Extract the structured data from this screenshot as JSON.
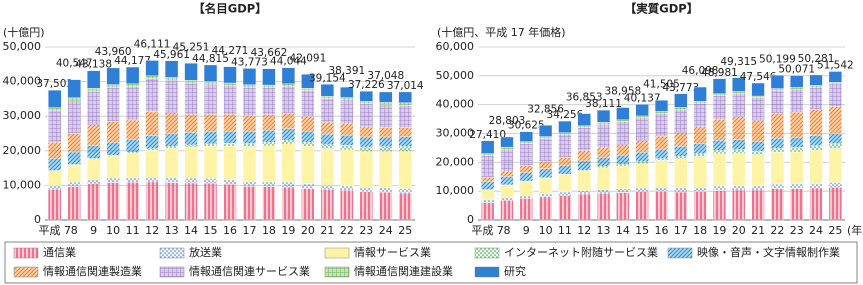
{
  "chart_data": [
    {
      "type": "bar",
      "stacked": true,
      "title": "【名目GDP】",
      "y_label": "(十億円)",
      "categories": [
        "平成 7",
        "8",
        "9",
        "10",
        "11",
        "12",
        "13",
        "14",
        "15",
        "16",
        "17",
        "18",
        "19",
        "20",
        "21",
        "22",
        "23",
        "24",
        "25"
      ],
      "ylim": [
        0,
        50000
      ],
      "yticks": [
        0,
        {
          "value": 10000,
          "label": "10,000"
        },
        {
          "value": 20000,
          "label": "20,000"
        },
        {
          "value": 30000,
          "label": "30,000"
        },
        {
          "value": 40000,
          "label": "40,000"
        },
        {
          "value": 50000,
          "label": "50,000"
        }
      ],
      "grid": true,
      "series": [
        {
          "name": "通信業",
          "color": "#e8607e",
          "pattern": "vlines",
          "values": [
            8800,
            9600,
            10500,
            10800,
            10900,
            11000,
            10800,
            10700,
            10600,
            10300,
            9700,
            9600,
            9500,
            9100,
            8800,
            8600,
            8200,
            8000,
            7800
          ]
        },
        {
          "name": "放送業",
          "color": "#3f7fd0",
          "pattern": "dots",
          "values": [
            1200,
            1300,
            1300,
            1300,
            1400,
            1400,
            1400,
            1400,
            1400,
            1400,
            1500,
            1500,
            1500,
            1400,
            1300,
            1300,
            1300,
            1300,
            1300
          ]
        },
        {
          "name": "情報サービス業",
          "color": "#fff3a6",
          "pattern": "none",
          "values": [
            4200,
            5000,
            5800,
            6400,
            7000,
            7800,
            8600,
            9000,
            9300,
            9700,
            10000,
            10400,
            11000,
            10800,
            10500,
            10400,
            10300,
            10500,
            10700
          ]
        },
        {
          "name": "インターネット附随サービス業",
          "color": "#2f9e3a",
          "pattern": "dots",
          "values": [
            100,
            150,
            200,
            250,
            300,
            400,
            500,
            600,
            700,
            800,
            900,
            1000,
            1100,
            1200,
            1200,
            1300,
            1300,
            1400,
            1500
          ]
        },
        {
          "name": "映像・音声・文字情報制作業",
          "color": "#1e90d0",
          "pattern": "diagonal",
          "values": [
            3500,
            3600,
            3700,
            3700,
            3700,
            3800,
            3700,
            3600,
            3600,
            3500,
            3500,
            3400,
            3300,
            3200,
            3000,
            2900,
            2900,
            2800,
            2800
          ]
        },
        {
          "name": "情報通信関連製造業",
          "color": "#f08020",
          "pattern": "diagonal",
          "values": [
            4700,
            5300,
            6000,
            6000,
            5600,
            6900,
            6000,
            5300,
            5000,
            4900,
            4700,
            4600,
            4500,
            4200,
            3500,
            3500,
            2900,
            2700,
            2600
          ]
        },
        {
          "name": "情報通信関連サービス業",
          "color": "#9070c0",
          "pattern": "grid",
          "values": [
            9200,
            9500,
            9700,
            9800,
            9600,
            9500,
            9400,
            9000,
            8700,
            8300,
            8100,
            7800,
            7800,
            7500,
            6800,
            6700,
            6700,
            6600,
            6500
          ]
        },
        {
          "name": "情報通信関連建設業",
          "color": "#5aaa38",
          "pattern": "grid",
          "values": [
            800,
            900,
            900,
            900,
            900,
            900,
            800,
            800,
            700,
            700,
            700,
            700,
            700,
            700,
            700,
            700,
            700,
            700,
            700
          ]
        },
        {
          "name": "研究",
          "color": "#2f7fd6",
          "pattern": "none",
          "values": [
            5000,
            5200,
            5000,
            4800,
            4800,
            4400,
            4800,
            4900,
            4800,
            4700,
            4700,
            4700,
            4600,
            4000,
            3400,
            3000,
            2900,
            3000,
            3100
          ]
        }
      ],
      "totals": [
        37502,
        40547,
        43138,
        43960,
        44177,
        46111,
        45961,
        45251,
        44815,
        44271,
        43773,
        43662,
        44044,
        42091,
        39154,
        38391,
        37226,
        37048,
        37014
      ],
      "total_labels": [
        "37,502",
        "40,547",
        "43,138",
        "43,960",
        "44,177",
        "46,111",
        "45,961",
        "45,251",
        "44,815",
        "44,271",
        "43,773",
        "43,662",
        "44,044",
        "42,091",
        "39,154",
        "38,391",
        "37,226",
        "37,048",
        "37,014"
      ]
    },
    {
      "type": "bar",
      "stacked": true,
      "title": "【実質GDP】",
      "y_label": "(十億円、平成 17 年価格)",
      "x_unit_label": "(年)",
      "categories": [
        "平成 7",
        "8",
        "9",
        "10",
        "11",
        "12",
        "13",
        "14",
        "15",
        "16",
        "17",
        "18",
        "19",
        "20",
        "21",
        "22",
        "23",
        "24",
        "25"
      ],
      "ylim": [
        0,
        60000
      ],
      "yticks": [
        0,
        {
          "value": 10000,
          "label": "10,000"
        },
        {
          "value": 20000,
          "label": "20,000"
        },
        {
          "value": 30000,
          "label": "30,000"
        },
        {
          "value": 40000,
          "label": "40,000"
        },
        {
          "value": 50000,
          "label": "50,000"
        },
        {
          "value": 60000,
          "label": "60,000"
        }
      ],
      "grid": true,
      "series": [
        {
          "name": "通信業",
          "color": "#e8607e",
          "pattern": "vlines",
          "values": [
            6000,
            6800,
            7500,
            8000,
            8500,
            9000,
            9300,
            9500,
            9800,
            10000,
            9700,
            9900,
            10200,
            10400,
            10400,
            10800,
            10900,
            11100,
            11300
          ]
        },
        {
          "name": "放送業",
          "color": "#3f7fd0",
          "pattern": "dots",
          "values": [
            1000,
            1100,
            1100,
            1100,
            1200,
            1200,
            1300,
            1300,
            1300,
            1400,
            1500,
            1500,
            1600,
            1500,
            1500,
            1600,
            1600,
            1600,
            1700
          ]
        },
        {
          "name": "情報サービス業",
          "color": "#fff3a6",
          "pattern": "none",
          "values": [
            3500,
            4200,
            4800,
            5400,
            6000,
            6800,
            7600,
            8000,
            8500,
            9200,
            10000,
            10600,
            11200,
            11200,
            10700,
            11000,
            11100,
            11400,
            11700
          ]
        },
        {
          "name": "インターネット附随サービス業",
          "color": "#2f9e3a",
          "pattern": "dots",
          "values": [
            50,
            80,
            100,
            150,
            200,
            300,
            400,
            500,
            600,
            700,
            900,
            1000,
            1200,
            1300,
            1300,
            1500,
            1600,
            1700,
            1800
          ]
        },
        {
          "name": "映像・音声・文字情報制作業",
          "color": "#1e90d0",
          "pattern": "diagonal",
          "values": [
            2800,
            2900,
            3000,
            3100,
            3100,
            3200,
            3200,
            3200,
            3300,
            3300,
            3500,
            3500,
            3500,
            3500,
            3400,
            3500,
            3500,
            3500,
            3500
          ]
        },
        {
          "name": "情報通信関連製造業",
          "color": "#f08020",
          "pattern": "diagonal",
          "values": [
            1500,
            1900,
            2300,
            2600,
            2600,
            3500,
            3400,
            3600,
            4000,
            4500,
            4700,
            5800,
            7200,
            7900,
            7200,
            8600,
            8700,
            8900,
            9300
          ]
        },
        {
          "name": "情報通信関連サービス業",
          "color": "#9070c0",
          "pattern": "grid",
          "values": [
            7500,
            7600,
            7700,
            7900,
            8000,
            8000,
            8000,
            8000,
            7900,
            7900,
            8100,
            8200,
            8200,
            8100,
            7900,
            8000,
            8000,
            7900,
            7900
          ]
        },
        {
          "name": "情報通信関連建設業",
          "color": "#5aaa38",
          "pattern": "grid",
          "values": [
            700,
            700,
            700,
            700,
            700,
            700,
            700,
            700,
            700,
            700,
            700,
            700,
            700,
            700,
            600,
            600,
            600,
            600,
            600
          ]
        },
        {
          "name": "研究",
          "color": "#2f7fd6",
          "pattern": "none",
          "values": [
            4400,
            3500,
            3400,
            3900,
            4000,
            4200,
            4200,
            4200,
            4000,
            3800,
            4700,
            4900,
            5200,
            4700,
            4500,
            4600,
            4100,
            3600,
            3700
          ]
        }
      ],
      "totals": [
        27410,
        28803,
        30625,
        32856,
        34256,
        36853,
        38111,
        38958,
        40137,
        41505,
        43773,
        46098,
        48981,
        49315,
        47546,
        50199,
        50071,
        50281,
        51542
      ],
      "total_labels": [
        "27,410",
        "28,803",
        "30,625",
        "32,856",
        "34,256",
        "36,853",
        "38,111",
        "38,958",
        "40,137",
        "41,505",
        "43,773",
        "46,098",
        "48,981",
        "49,315",
        "47,546",
        "50,199",
        "50,071",
        "50,281",
        "51,542"
      ]
    }
  ]
}
